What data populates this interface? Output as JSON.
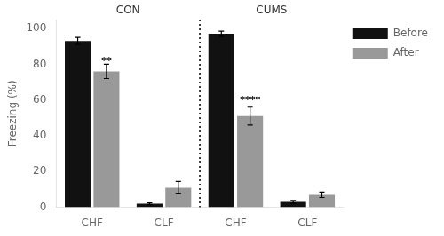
{
  "chart_data": {
    "type": "bar",
    "categories": [
      "CHF",
      "CLF",
      "CHF",
      "CLF"
    ],
    "group_labels": [
      "CON",
      "CUMS"
    ],
    "series": [
      {
        "name": "Before",
        "color": "#111111",
        "values": [
          93,
          2,
          97,
          3
        ],
        "errors": [
          2,
          0.5,
          1.5,
          0.8
        ]
      },
      {
        "name": "After",
        "color": "#999999",
        "values": [
          76,
          11,
          51,
          7
        ],
        "errors": [
          4,
          3.5,
          5,
          1.5
        ]
      }
    ],
    "annotations": [
      {
        "text": "**",
        "category": 0,
        "series": 1,
        "y": 79
      },
      {
        "text": "****",
        "category": 2,
        "series": 1,
        "y": 57
      }
    ],
    "ylabel": "Freezing (%)",
    "ylim": [
      0,
      105
    ],
    "yticks": [
      0,
      20,
      40,
      60,
      80,
      100
    ],
    "grid": false,
    "legend": "right"
  }
}
